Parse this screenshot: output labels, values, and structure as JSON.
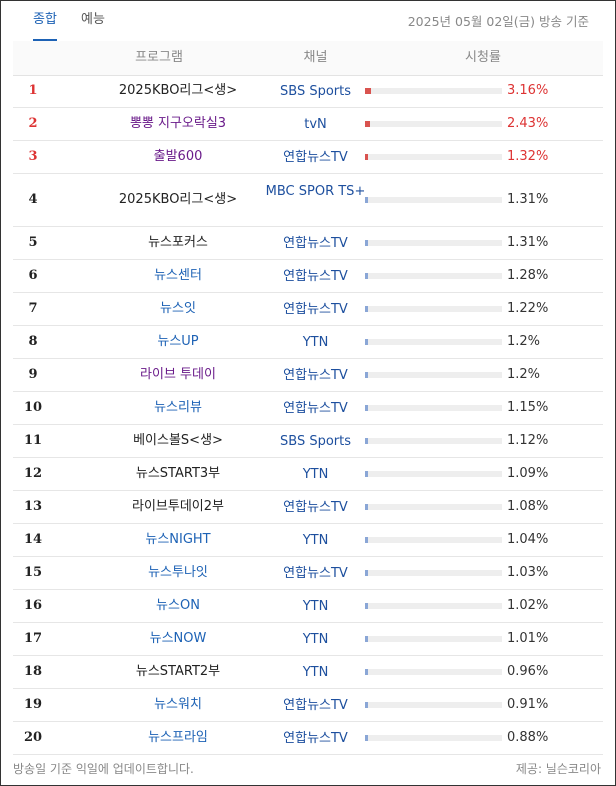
{
  "tabs": [
    {
      "label": "종합"
    },
    {
      "label": "예능"
    }
  ],
  "date_note": "2025년 05월 02일(금) 방송 기준",
  "columns": {
    "program": "프로그램",
    "channel": "채널",
    "rating": "시청률"
  },
  "colors": {
    "accent": "#1d62b5",
    "rank_top": "#dd3333",
    "bar_top": "#d9534f",
    "bar_normal": "#8aa6d6",
    "link_purple": "#6a1b8a",
    "link_blue": "#1d62b5",
    "plain": "#222222"
  },
  "rows": [
    {
      "rank": "1",
      "program": "2025KBO리그<생>",
      "link": "plain",
      "channel": "SBS Sports",
      "rating": "3.16%",
      "value": 3.16
    },
    {
      "rank": "2",
      "program": "뽕뽕 지구오락실3",
      "link": "purple",
      "channel": "tvN",
      "rating": "2.43%",
      "value": 2.43
    },
    {
      "rank": "3",
      "program": "출발600",
      "link": "purple",
      "channel": "연합뉴스TV",
      "rating": "1.32%",
      "value": 1.32
    },
    {
      "rank": "4",
      "program": "2025KBO리그<생>",
      "link": "plain",
      "channel": "MBC SPOR TS+",
      "rating": "1.31%",
      "value": 1.31
    },
    {
      "rank": "5",
      "program": "뉴스포커스",
      "link": "plain",
      "channel": "연합뉴스TV",
      "rating": "1.31%",
      "value": 1.31
    },
    {
      "rank": "6",
      "program": "뉴스센터",
      "link": "blue",
      "channel": "연합뉴스TV",
      "rating": "1.28%",
      "value": 1.28
    },
    {
      "rank": "7",
      "program": "뉴스잇",
      "link": "blue",
      "channel": "연합뉴스TV",
      "rating": "1.22%",
      "value": 1.22
    },
    {
      "rank": "8",
      "program": "뉴스UP",
      "link": "blue",
      "channel": "YTN",
      "rating": "1.2%",
      "value": 1.2
    },
    {
      "rank": "9",
      "program": "라이브 투데이",
      "link": "purple",
      "channel": "연합뉴스TV",
      "rating": "1.2%",
      "value": 1.2
    },
    {
      "rank": "10",
      "program": "뉴스리뷰",
      "link": "blue",
      "channel": "연합뉴스TV",
      "rating": "1.15%",
      "value": 1.15
    },
    {
      "rank": "11",
      "program": "베이스볼S<생>",
      "link": "plain",
      "channel": "SBS Sports",
      "rating": "1.12%",
      "value": 1.12
    },
    {
      "rank": "12",
      "program": "뉴스START3부",
      "link": "plain",
      "channel": "YTN",
      "rating": "1.09%",
      "value": 1.09
    },
    {
      "rank": "13",
      "program": "라이브투데이2부",
      "link": "plain",
      "channel": "연합뉴스TV",
      "rating": "1.08%",
      "value": 1.08
    },
    {
      "rank": "14",
      "program": "뉴스NIGHT",
      "link": "blue",
      "channel": "YTN",
      "rating": "1.04%",
      "value": 1.04
    },
    {
      "rank": "15",
      "program": "뉴스투나잇",
      "link": "blue",
      "channel": "연합뉴스TV",
      "rating": "1.03%",
      "value": 1.03
    },
    {
      "rank": "16",
      "program": "뉴스ON",
      "link": "blue",
      "channel": "YTN",
      "rating": "1.02%",
      "value": 1.02
    },
    {
      "rank": "17",
      "program": "뉴스NOW",
      "link": "blue",
      "channel": "YTN",
      "rating": "1.01%",
      "value": 1.01
    },
    {
      "rank": "18",
      "program": "뉴스START2부",
      "link": "plain",
      "channel": "YTN",
      "rating": "0.96%",
      "value": 0.96
    },
    {
      "rank": "19",
      "program": "뉴스워치",
      "link": "blue",
      "channel": "연합뉴스TV",
      "rating": "0.91%",
      "value": 0.91
    },
    {
      "rank": "20",
      "program": "뉴스프라임",
      "link": "blue",
      "channel": "연합뉴스TV",
      "rating": "0.88%",
      "value": 0.88
    }
  ],
  "footer": {
    "note": "방송일 기준 익일에 업데이트합니다.",
    "provider": "제공: 닐슨코리아"
  }
}
